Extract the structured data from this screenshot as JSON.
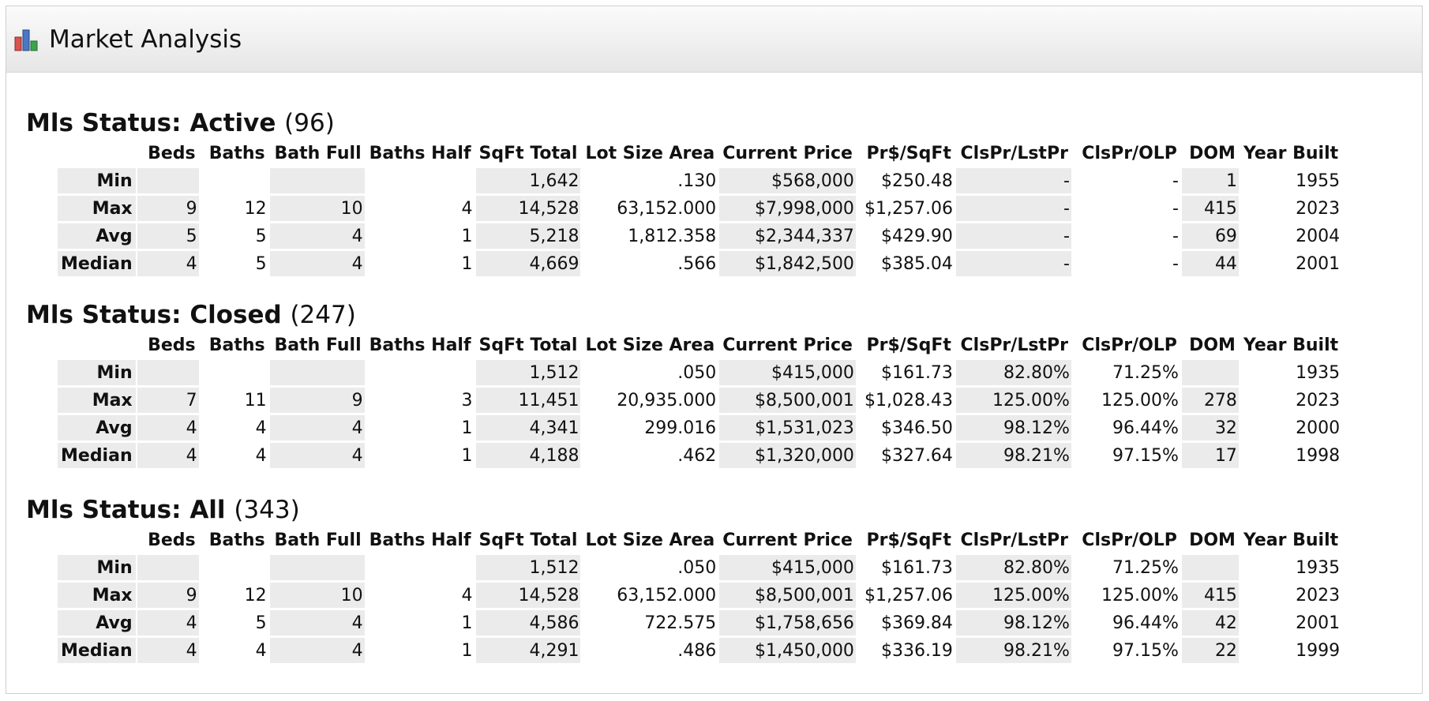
{
  "panel": {
    "title": "Market Analysis",
    "icon": "bar-chart-icon"
  },
  "columns": [
    "Beds",
    "Baths",
    "Bath Full",
    "Baths Half",
    "SqFt Total",
    "Lot Size Area",
    "Current Price",
    "Pr$/SqFt",
    "ClsPr/LstPr",
    "ClsPr/OLP",
    "DOM",
    "Year Built"
  ],
  "row_labels": [
    "Min",
    "Max",
    "Avg",
    "Median"
  ],
  "sections": [
    {
      "title": "Mls Status: Active",
      "count": "(96)",
      "rows": [
        [
          "",
          "",
          "",
          "",
          "1,642",
          ".130",
          "$568,000",
          "$250.48",
          "-",
          "-",
          "1",
          "1955"
        ],
        [
          "9",
          "12",
          "10",
          "4",
          "14,528",
          "63,152.000",
          "$7,998,000",
          "$1,257.06",
          "-",
          "-",
          "415",
          "2023"
        ],
        [
          "5",
          "5",
          "4",
          "1",
          "5,218",
          "1,812.358",
          "$2,344,337",
          "$429.90",
          "-",
          "-",
          "69",
          "2004"
        ],
        [
          "4",
          "5",
          "4",
          "1",
          "4,669",
          ".566",
          "$1,842,500",
          "$385.04",
          "-",
          "-",
          "44",
          "2001"
        ]
      ]
    },
    {
      "title": "Mls Status: Closed",
      "count": "(247)",
      "rows": [
        [
          "",
          "",
          "",
          "",
          "1,512",
          ".050",
          "$415,000",
          "$161.73",
          "82.80%",
          "71.25%",
          "",
          "1935"
        ],
        [
          "7",
          "11",
          "9",
          "3",
          "11,451",
          "20,935.000",
          "$8,500,001",
          "$1,028.43",
          "125.00%",
          "125.00%",
          "278",
          "2023"
        ],
        [
          "4",
          "4",
          "4",
          "1",
          "4,341",
          "299.016",
          "$1,531,023",
          "$346.50",
          "98.12%",
          "96.44%",
          "32",
          "2000"
        ],
        [
          "4",
          "4",
          "4",
          "1",
          "4,188",
          ".462",
          "$1,320,000",
          "$327.64",
          "98.21%",
          "97.15%",
          "17",
          "1998"
        ]
      ]
    },
    {
      "title": "Mls Status: All",
      "count": "(343)",
      "rows": [
        [
          "",
          "",
          "",
          "",
          "1,512",
          ".050",
          "$415,000",
          "$161.73",
          "82.80%",
          "71.25%",
          "",
          "1935"
        ],
        [
          "9",
          "12",
          "10",
          "4",
          "14,528",
          "63,152.000",
          "$8,500,001",
          "$1,257.06",
          "125.00%",
          "125.00%",
          "415",
          "2023"
        ],
        [
          "4",
          "5",
          "4",
          "1",
          "4,586",
          "722.575",
          "$1,758,656",
          "$369.84",
          "98.12%",
          "96.44%",
          "42",
          "2001"
        ],
        [
          "4",
          "4",
          "4",
          "1",
          "4,291",
          ".486",
          "$1,450,000",
          "$336.19",
          "98.21%",
          "97.15%",
          "22",
          "1999"
        ]
      ]
    }
  ]
}
